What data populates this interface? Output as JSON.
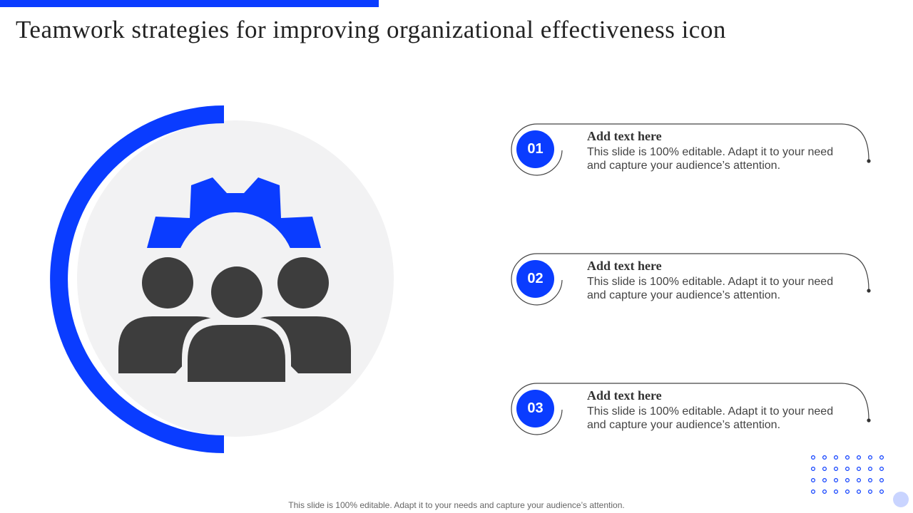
{
  "slide": {
    "title": "Teamwork strategies for improving organizational effectiveness icon",
    "footer": "This slide is 100% editable. Adapt it to your needs and capture your audience’s attention."
  },
  "hero": {
    "icon": "team-gear-icon",
    "colors": {
      "accent": "#0a3cff",
      "people": "#3d3d3d",
      "circle_bg": "#f2f2f3"
    }
  },
  "items": [
    {
      "number": "01",
      "heading": "Add text here",
      "body": "This slide is 100% editable. Adapt it to your need and capture your audience’s attention."
    },
    {
      "number": "02",
      "heading": "Add text here",
      "body": "This slide is 100% editable. Adapt it to your need and capture your audience’s attention."
    },
    {
      "number": "03",
      "heading": "Add text here",
      "body": "This slide is 100% editable. Adapt it to your need and capture your audience’s attention."
    }
  ]
}
